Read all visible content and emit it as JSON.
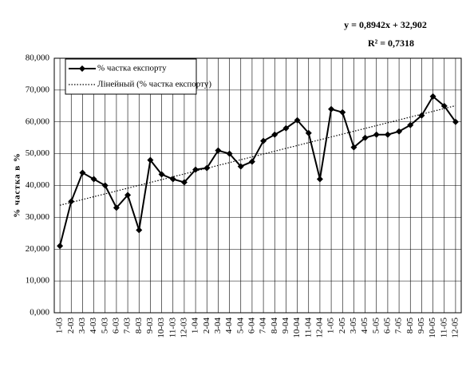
{
  "chart_data": {
    "type": "line",
    "y_label": "% частка в %",
    "categories": [
      "1-03",
      "2-03",
      "3-03",
      "4-03",
      "5-03",
      "6-03",
      "7-03",
      "8-03",
      "9-03",
      "10-03",
      "11-03",
      "12-03",
      "1-04",
      "2-04",
      "3-04",
      "4-04",
      "5-04",
      "6-04",
      "7-04",
      "8-04",
      "9-04",
      "10-04",
      "11-04",
      "12-04",
      "1-05",
      "2-05",
      "3-05",
      "4-05",
      "5-05",
      "6-05",
      "7-05",
      "8-05",
      "9-05",
      "10-05",
      "11-05",
      "12-05"
    ],
    "series": [
      {
        "name": "% частка експорту",
        "color": "#000000",
        "values": [
          21,
          35,
          44,
          42,
          40,
          33,
          37,
          26,
          48,
          43.5,
          42,
          41,
          45,
          45.5,
          51,
          50,
          46,
          47.5,
          54,
          56,
          58,
          60.5,
          56.5,
          42,
          64,
          63,
          52,
          55,
          56,
          56,
          57,
          59,
          62,
          68,
          65,
          60
        ]
      }
    ],
    "trend": {
      "name": "Лінейный (% частка експорту)",
      "slope": 0.8942,
      "intercept": 32.902,
      "equation": "y = 0,8942x + 32,902",
      "r2": 0.7318,
      "r2_label": "R² = 0,7318"
    },
    "ylim": [
      0,
      80
    ],
    "yticks": [
      {
        "value": 0,
        "label": "0,000"
      },
      {
        "value": 10,
        "label": "10,000"
      },
      {
        "value": 20,
        "label": "20,000"
      },
      {
        "value": 30,
        "label": "30,000"
      },
      {
        "value": 40,
        "label": "40,000"
      },
      {
        "value": 50,
        "label": "50,000"
      },
      {
        "value": 60,
        "label": "60,000"
      },
      {
        "value": 70,
        "label": "70,000"
      },
      {
        "value": 80,
        "label": "80,000"
      }
    ],
    "grid": true,
    "legend": "top-left"
  }
}
